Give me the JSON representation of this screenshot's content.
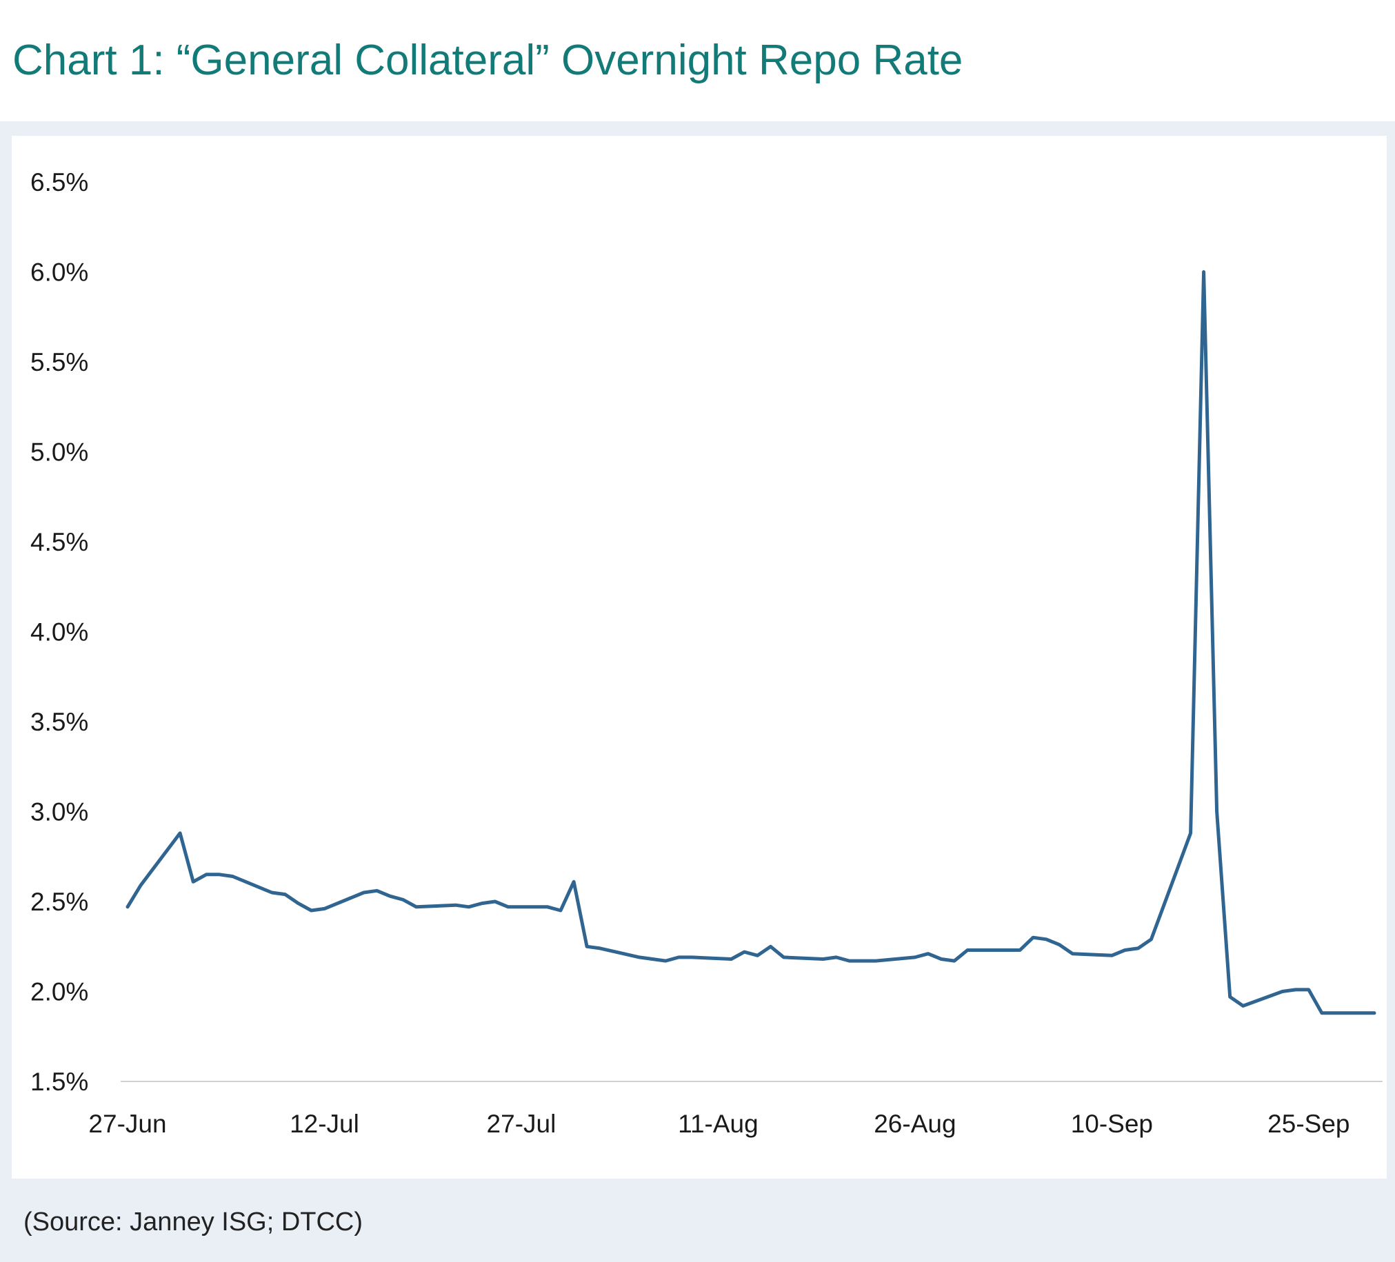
{
  "title": "Chart 1:  “General Collateral” Overnight Repo Rate",
  "source": "(Source: Janney ISG; DTCC)",
  "colors": {
    "title": "#127b78",
    "line": "#2f6590",
    "panel": "#eaeff6",
    "axis": "#d0d0d0"
  },
  "chart_data": {
    "type": "line",
    "title": "Chart 1:  “General Collateral” Overnight Repo Rate",
    "xlabel": "",
    "ylabel": "",
    "ylim": [
      1.5,
      6.5
    ],
    "yticks": [
      "6.5%",
      "6.0%",
      "5.5%",
      "5.0%",
      "4.5%",
      "4.0%",
      "3.5%",
      "3.0%",
      "2.5%",
      "2.0%",
      "1.5%"
    ],
    "ytick_values": [
      6.5,
      6.0,
      5.5,
      5.0,
      4.5,
      4.0,
      3.5,
      3.0,
      2.5,
      2.0,
      1.5
    ],
    "xticks": [
      "27-Jun",
      "12-Jul",
      "27-Jul",
      "11-Aug",
      "26-Aug",
      "10-Sep",
      "25-Sep"
    ],
    "xtick_dates": [
      "06-27",
      "07-12",
      "07-27",
      "08-11",
      "08-26",
      "09-10",
      "09-25"
    ],
    "xlim": [
      "06-27",
      "09-30"
    ],
    "grid": false,
    "legend": "none",
    "series": [
      {
        "values": [
          [
            "06-27",
            2.47
          ],
          [
            "06-28",
            2.59
          ],
          [
            "07-01",
            2.88
          ],
          [
            "07-02",
            2.61
          ],
          [
            "07-03",
            2.65
          ],
          [
            "07-04",
            2.65
          ],
          [
            "07-05",
            2.64
          ],
          [
            "07-08",
            2.55
          ],
          [
            "07-09",
            2.54
          ],
          [
            "07-10",
            2.49
          ],
          [
            "07-11",
            2.45
          ],
          [
            "07-12",
            2.46
          ],
          [
            "07-15",
            2.55
          ],
          [
            "07-16",
            2.56
          ],
          [
            "07-17",
            2.53
          ],
          [
            "07-18",
            2.51
          ],
          [
            "07-19",
            2.47
          ],
          [
            "07-22",
            2.48
          ],
          [
            "07-23",
            2.47
          ],
          [
            "07-24",
            2.49
          ],
          [
            "07-25",
            2.5
          ],
          [
            "07-26",
            2.47
          ],
          [
            "07-29",
            2.47
          ],
          [
            "07-30",
            2.45
          ],
          [
            "07-31",
            2.61
          ],
          [
            "08-01",
            2.25
          ],
          [
            "08-02",
            2.24
          ],
          [
            "08-05",
            2.19
          ],
          [
            "08-06",
            2.18
          ],
          [
            "08-07",
            2.17
          ],
          [
            "08-08",
            2.19
          ],
          [
            "08-09",
            2.19
          ],
          [
            "08-12",
            2.18
          ],
          [
            "08-13",
            2.22
          ],
          [
            "08-14",
            2.2
          ],
          [
            "08-15",
            2.25
          ],
          [
            "08-16",
            2.19
          ],
          [
            "08-19",
            2.18
          ],
          [
            "08-20",
            2.19
          ],
          [
            "08-21",
            2.17
          ],
          [
            "08-22",
            2.17
          ],
          [
            "08-23",
            2.17
          ],
          [
            "08-26",
            2.19
          ],
          [
            "08-27",
            2.21
          ],
          [
            "08-28",
            2.18
          ],
          [
            "08-29",
            2.17
          ],
          [
            "08-30",
            2.23
          ],
          [
            "09-03",
            2.23
          ],
          [
            "09-04",
            2.3
          ],
          [
            "09-05",
            2.29
          ],
          [
            "09-06",
            2.26
          ],
          [
            "09-07",
            2.21
          ],
          [
            "09-10",
            2.2
          ],
          [
            "09-11",
            2.23
          ],
          [
            "09-12",
            2.24
          ],
          [
            "09-13",
            2.29
          ],
          [
            "09-16",
            2.88
          ],
          [
            "09-17",
            6.0
          ],
          [
            "09-18",
            3.0
          ],
          [
            "09-19",
            1.97
          ],
          [
            "09-20",
            1.92
          ],
          [
            "09-23",
            2.0
          ],
          [
            "09-24",
            2.01
          ],
          [
            "09-25",
            2.01
          ],
          [
            "09-26",
            1.88
          ],
          [
            "09-27",
            1.88
          ],
          [
            "09-30",
            1.88
          ]
        ]
      }
    ]
  }
}
